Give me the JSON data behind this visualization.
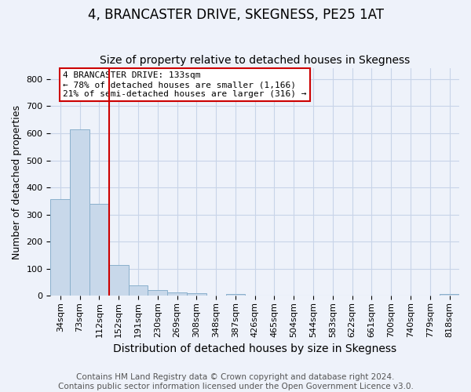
{
  "title": "4, BRANCASTER DRIVE, SKEGNESS, PE25 1AT",
  "subtitle": "Size of property relative to detached houses in Skegness",
  "xlabel": "Distribution of detached houses by size in Skegness",
  "ylabel": "Number of detached properties",
  "bar_color": "#c8d8ea",
  "bar_edge_color": "#8ab0cc",
  "bin_labels": [
    "34sqm",
    "73sqm",
    "112sqm",
    "152sqm",
    "191sqm",
    "230sqm",
    "269sqm",
    "308sqm",
    "348sqm",
    "387sqm",
    "426sqm",
    "465sqm",
    "504sqm",
    "544sqm",
    "583sqm",
    "622sqm",
    "661sqm",
    "700sqm",
    "740sqm",
    "779sqm",
    "818sqm"
  ],
  "bar_values": [
    357,
    614,
    341,
    113,
    38,
    20,
    14,
    10,
    0,
    8,
    0,
    0,
    0,
    0,
    0,
    0,
    0,
    0,
    0,
    0,
    7
  ],
  "vline_pos": 2.525,
  "annotation_text": "4 BRANCASTER DRIVE: 133sqm\n← 78% of detached houses are smaller (1,166)\n21% of semi-detached houses are larger (316) →",
  "annotation_box_color": "white",
  "annotation_box_edge_color": "#cc0000",
  "vline_color": "#cc0000",
  "ylim": [
    0,
    840
  ],
  "yticks": [
    0,
    100,
    200,
    300,
    400,
    500,
    600,
    700,
    800
  ],
  "grid_color": "#c8d4e8",
  "background_color": "#eef2fa",
  "footer": "Contains HM Land Registry data © Crown copyright and database right 2024.\nContains public sector information licensed under the Open Government Licence v3.0.",
  "title_fontsize": 12,
  "subtitle_fontsize": 10,
  "xlabel_fontsize": 10,
  "ylabel_fontsize": 9,
  "tick_fontsize": 8,
  "annotation_fontsize": 8,
  "footer_fontsize": 7.5
}
